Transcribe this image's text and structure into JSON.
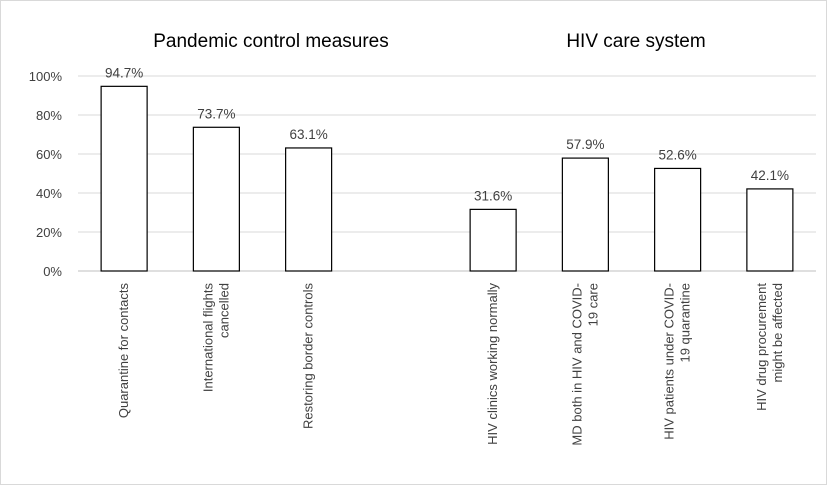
{
  "chart_data": {
    "type": "bar",
    "group_titles": [
      "Pandemic control measures",
      "HIV care system"
    ],
    "categories": [
      [
        "Quarantine for contacts"
      ],
      [
        "International flights",
        "cancelled"
      ],
      [
        "Restoring border controls"
      ],
      [],
      [
        "HIV clinics working normally"
      ],
      [
        "MD both in HIV and COVID-",
        "19 care"
      ],
      [
        "HIV patients under COVID-",
        "19 quarantine"
      ],
      [
        "HIV drug procurement",
        "might be affected"
      ]
    ],
    "values": [
      94.7,
      73.7,
      63.1,
      null,
      31.6,
      57.9,
      52.6,
      42.1
    ],
    "data_labels": [
      "94.7%",
      "73.7%",
      "63.1%",
      "",
      "31.6%",
      "57.9%",
      "52.6%",
      "42.1%"
    ],
    "ylim": [
      0,
      100
    ],
    "yticks": [
      "0%",
      "20%",
      "40%",
      "60%",
      "80%",
      "100%"
    ],
    "grid": true,
    "colors": {
      "bar_fill": "#ffffff",
      "bar_stroke": "#000000",
      "grid": "#d9d9d9",
      "axis": "#bfbfbf",
      "text": "#404040"
    }
  }
}
